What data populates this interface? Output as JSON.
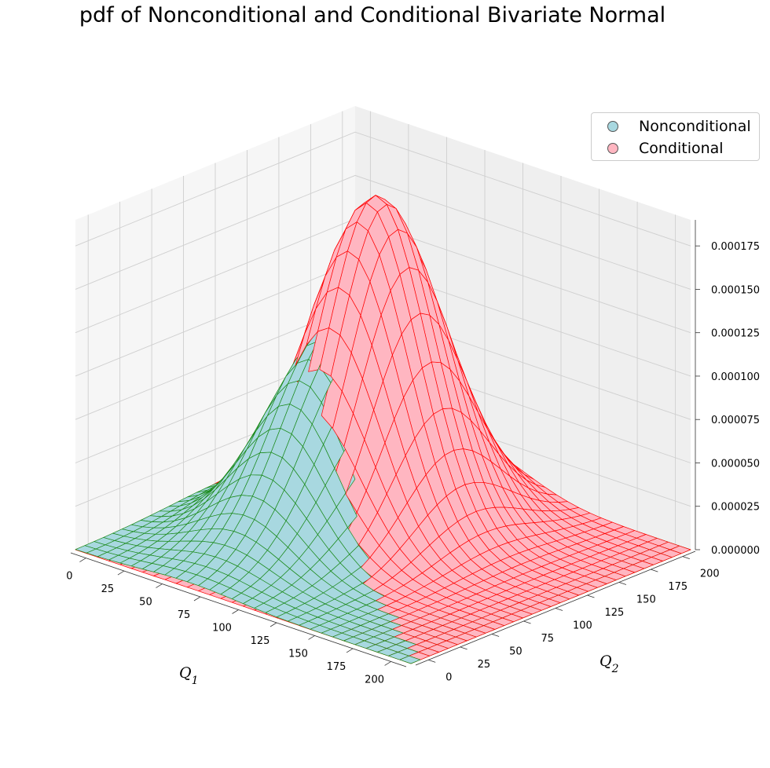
{
  "chart_data": {
    "type": "surface3d",
    "title": "pdf of Nonconditional and Conditional Bivariate Normal",
    "xlabel": "Q1",
    "ylabel": "Q2",
    "zlabel": "",
    "xlim": [
      -10,
      210
    ],
    "ylim": [
      -10,
      210
    ],
    "zlim": [
      0,
      0.00019
    ],
    "x_ticks": [
      "0",
      "25",
      "50",
      "75",
      "100",
      "125",
      "150",
      "175",
      "200"
    ],
    "y_ticks": [
      "0",
      "25",
      "50",
      "75",
      "100",
      "125",
      "150",
      "175",
      "200"
    ],
    "z_ticks": [
      "0.000000",
      "0.000025",
      "0.000050",
      "0.000075",
      "0.000100",
      "0.000125",
      "0.000150",
      "0.000175"
    ],
    "x_tick_values": [
      0,
      25,
      50,
      75,
      100,
      125,
      150,
      175,
      200
    ],
    "y_tick_values": [
      0,
      25,
      50,
      75,
      100,
      125,
      150,
      175,
      200
    ],
    "z_tick_values": [
      0,
      2.5e-05,
      5e-05,
      7.5e-05,
      0.0001,
      0.000125,
      0.00015,
      0.000175
    ],
    "grid": true,
    "legend_position": "top-right",
    "series": [
      {
        "name": "Nonconditional",
        "distribution": "bivariate-normal",
        "mean": [
          65,
          110
        ],
        "std": [
          30,
          45
        ],
        "peak": 0.00012,
        "fill_color": "#a8d8e0",
        "line_color": "#1a8a1a"
      },
      {
        "name": "Conditional",
        "distribution": "bivariate-normal",
        "mean": [
          72,
          128
        ],
        "std": [
          32,
          38
        ],
        "peak": 0.000187,
        "fill_color": "#ffb6c1",
        "line_color": "#ff0000"
      }
    ]
  }
}
